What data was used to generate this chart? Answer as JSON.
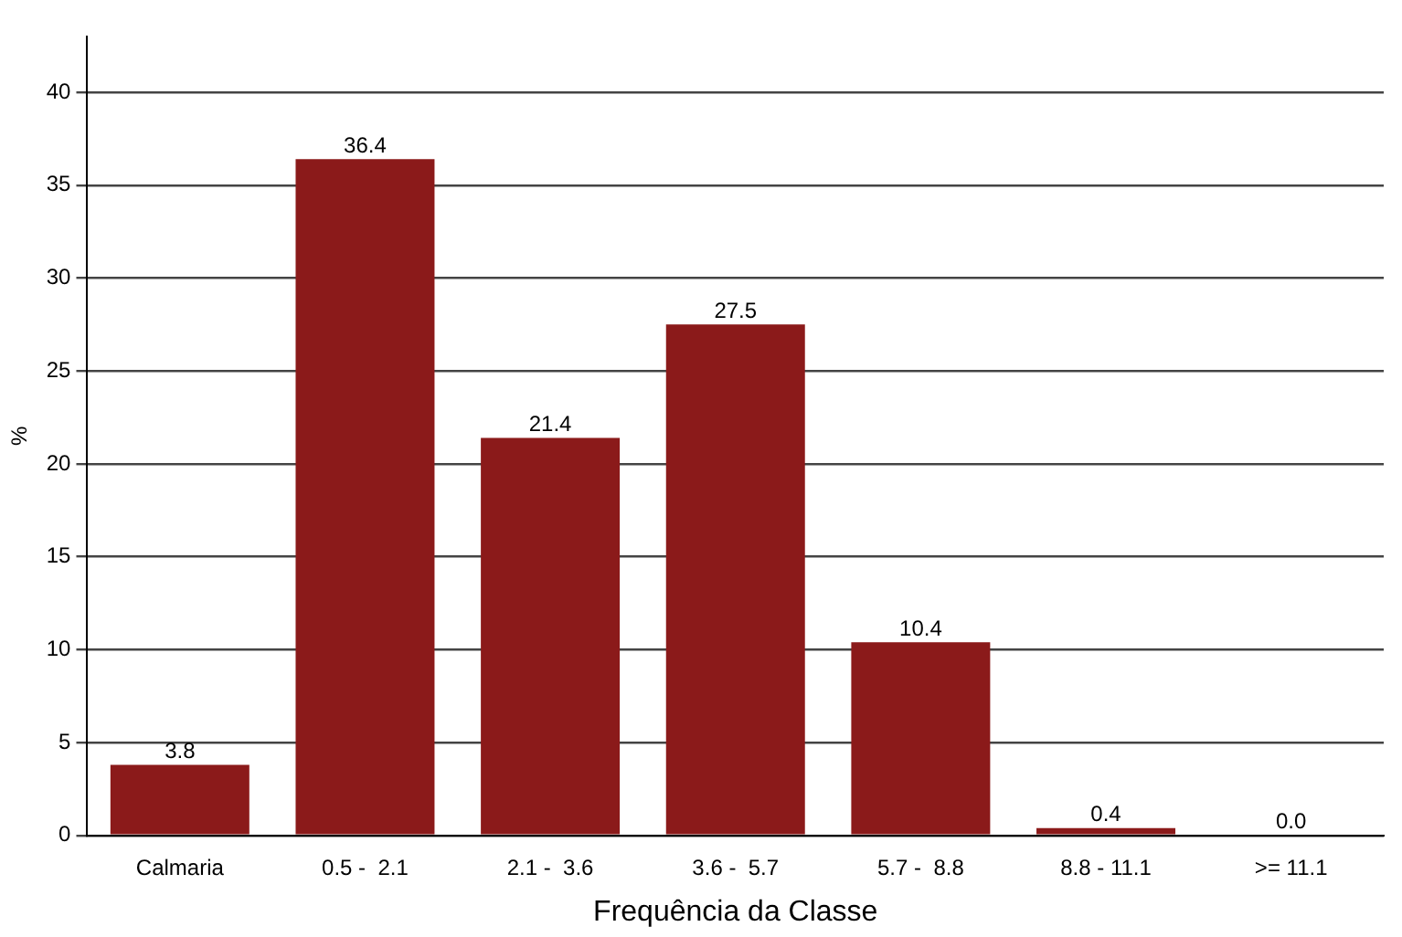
{
  "chart_data": {
    "type": "bar",
    "xlabel": "Frequência da Classe",
    "ylabel": "%",
    "categories": [
      "Calmaria",
      "0.5 -  2.1",
      "2.1 -  3.6",
      "3.6 -  5.7",
      "5.7 -  8.8",
      "8.8 - 11.1",
      ">= 11.1"
    ],
    "values": [
      3.8,
      36.4,
      21.4,
      27.5,
      10.4,
      0.4,
      0.0
    ],
    "value_labels": [
      "3.8",
      "36.4",
      "21.4",
      "27.5",
      "10.4",
      "0.4",
      "0.0"
    ],
    "color": "#8b1a1a",
    "ylim": [
      0,
      43
    ],
    "yticks": [
      0,
      5,
      10,
      15,
      20,
      25,
      30,
      35,
      40
    ],
    "grid": "y",
    "legend": false
  }
}
